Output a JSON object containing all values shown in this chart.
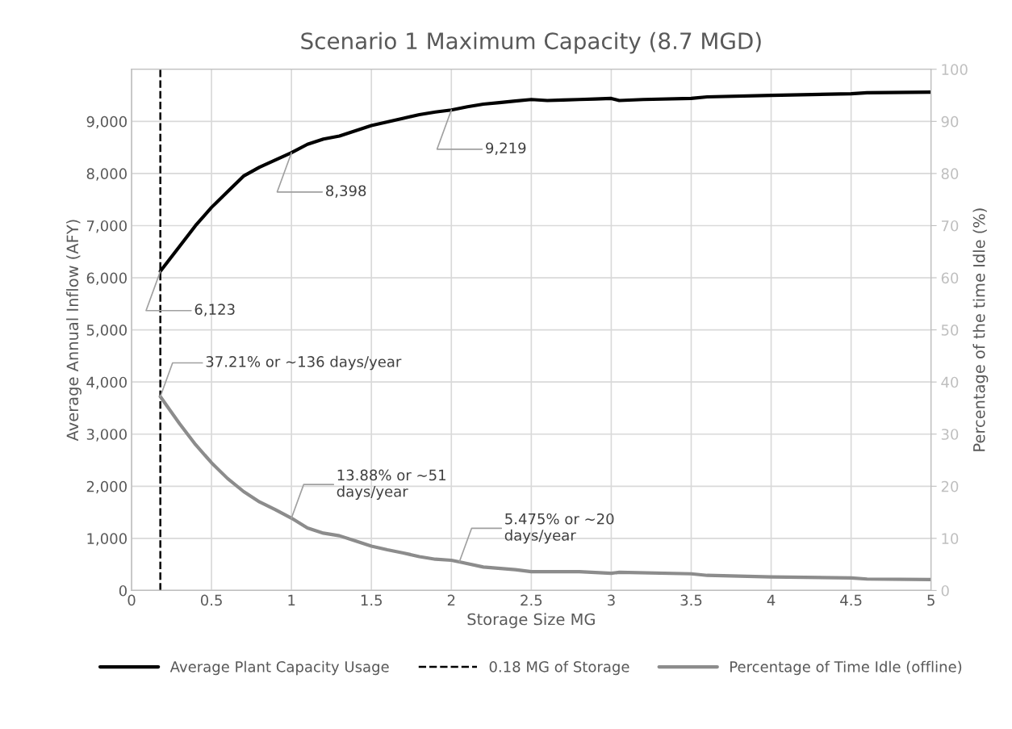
{
  "chart_data": {
    "type": "line",
    "title": "Scenario 1 Maximum Capacity (8.7 MGD)",
    "xlabel": "Storage Size MG",
    "ylabel": "Average Annual Inflow (AFY)",
    "y2label": "Percentage of the time Idle (%)",
    "xlim": [
      0,
      5
    ],
    "xticks": [
      0,
      0.5,
      1,
      1.5,
      2,
      2.5,
      3,
      3.5,
      4,
      4.5,
      5
    ],
    "ylim": [
      0,
      10000
    ],
    "yticks": [
      {
        "value": 0,
        "label": "0"
      },
      {
        "value": 1000,
        "label": "1,000"
      },
      {
        "value": 2000,
        "label": "2,000"
      },
      {
        "value": 3000,
        "label": "3,000"
      },
      {
        "value": 4000,
        "label": "4,000"
      },
      {
        "value": 5000,
        "label": "5,000"
      },
      {
        "value": 6000,
        "label": "6,000"
      },
      {
        "value": 7000,
        "label": "7,000"
      },
      {
        "value": 8000,
        "label": "8,000"
      },
      {
        "value": 9000,
        "label": "9,000"
      }
    ],
    "y2lim": [
      0,
      100
    ],
    "y2ticks": [
      0,
      10,
      20,
      30,
      40,
      50,
      60,
      70,
      80,
      90,
      100
    ],
    "grid": true,
    "legend": "bottom",
    "line_style": "solid",
    "marker": "none",
    "ref_lines": [
      {
        "axis": "x",
        "value": 0.18,
        "label": "0.18 MG of Storage",
        "color": "#000000",
        "line_style": "dashed"
      }
    ],
    "series": [
      {
        "name": "Average Plant Capacity Usage",
        "color": "#000000",
        "x": [
          0.18,
          0.3,
          0.4,
          0.5,
          0.6,
          0.7,
          0.8,
          0.9,
          1.0,
          1.1,
          1.2,
          1.3,
          1.4,
          1.5,
          1.6,
          1.7,
          1.8,
          1.9,
          2.0,
          2.1,
          2.2,
          2.3,
          2.4,
          2.5,
          2.6,
          2.7,
          2.8,
          2.9,
          3.0,
          3.05,
          3.2,
          3.5,
          3.6,
          4.0,
          4.5,
          4.6,
          5.0
        ],
        "values": [
          6123,
          6600,
          7000,
          7350,
          7650,
          7950,
          8120,
          8260,
          8398,
          8560,
          8660,
          8720,
          8820,
          8920,
          8990,
          9060,
          9130,
          9180,
          9219,
          9280,
          9330,
          9360,
          9390,
          9420,
          9400,
          9410,
          9420,
          9430,
          9440,
          9400,
          9420,
          9440,
          9470,
          9500,
          9530,
          9550,
          9560
        ],
        "value_labels": [
          "6,123",
          null,
          null,
          null,
          null,
          null,
          null,
          null,
          "8,398",
          null,
          null,
          null,
          null,
          null,
          null,
          null,
          null,
          null,
          "9,219",
          null,
          null,
          null,
          null,
          null,
          null,
          null,
          null,
          null,
          null,
          null,
          null,
          null,
          null,
          null,
          null,
          null,
          null
        ]
      },
      {
        "name": "Percentage of Time Idle (offline)",
        "color": "#8c8c8c",
        "axis": "y2",
        "x": [
          0.18,
          0.3,
          0.4,
          0.5,
          0.6,
          0.7,
          0.8,
          0.9,
          1.0,
          1.1,
          1.2,
          1.3,
          1.4,
          1.5,
          1.6,
          1.7,
          1.8,
          1.9,
          2.0,
          2.05,
          2.2,
          2.4,
          2.5,
          2.6,
          2.8,
          3.0,
          3.05,
          3.5,
          3.6,
          4.0,
          4.5,
          4.6,
          5.0
        ],
        "values": [
          37.21,
          32,
          28,
          24.5,
          21.5,
          19,
          17,
          15.5,
          13.88,
          12,
          11,
          10.5,
          9.5,
          8.5,
          7.8,
          7.2,
          6.5,
          6,
          5.8,
          5.475,
          4.5,
          4,
          3.6,
          3.6,
          3.6,
          3.3,
          3.5,
          3.2,
          2.9,
          2.6,
          2.4,
          2.2,
          2.1
        ],
        "value_labels": [
          "37.21% or ~136 days/year",
          null,
          null,
          null,
          null,
          null,
          null,
          null,
          "13.88% or ~51\ndays/year",
          null,
          null,
          null,
          null,
          null,
          null,
          null,
          null,
          null,
          null,
          "5.475% or ~20\ndays/year",
          null,
          null,
          null,
          null,
          null,
          null,
          null,
          null,
          null,
          null,
          null,
          null,
          null
        ]
      }
    ]
  }
}
